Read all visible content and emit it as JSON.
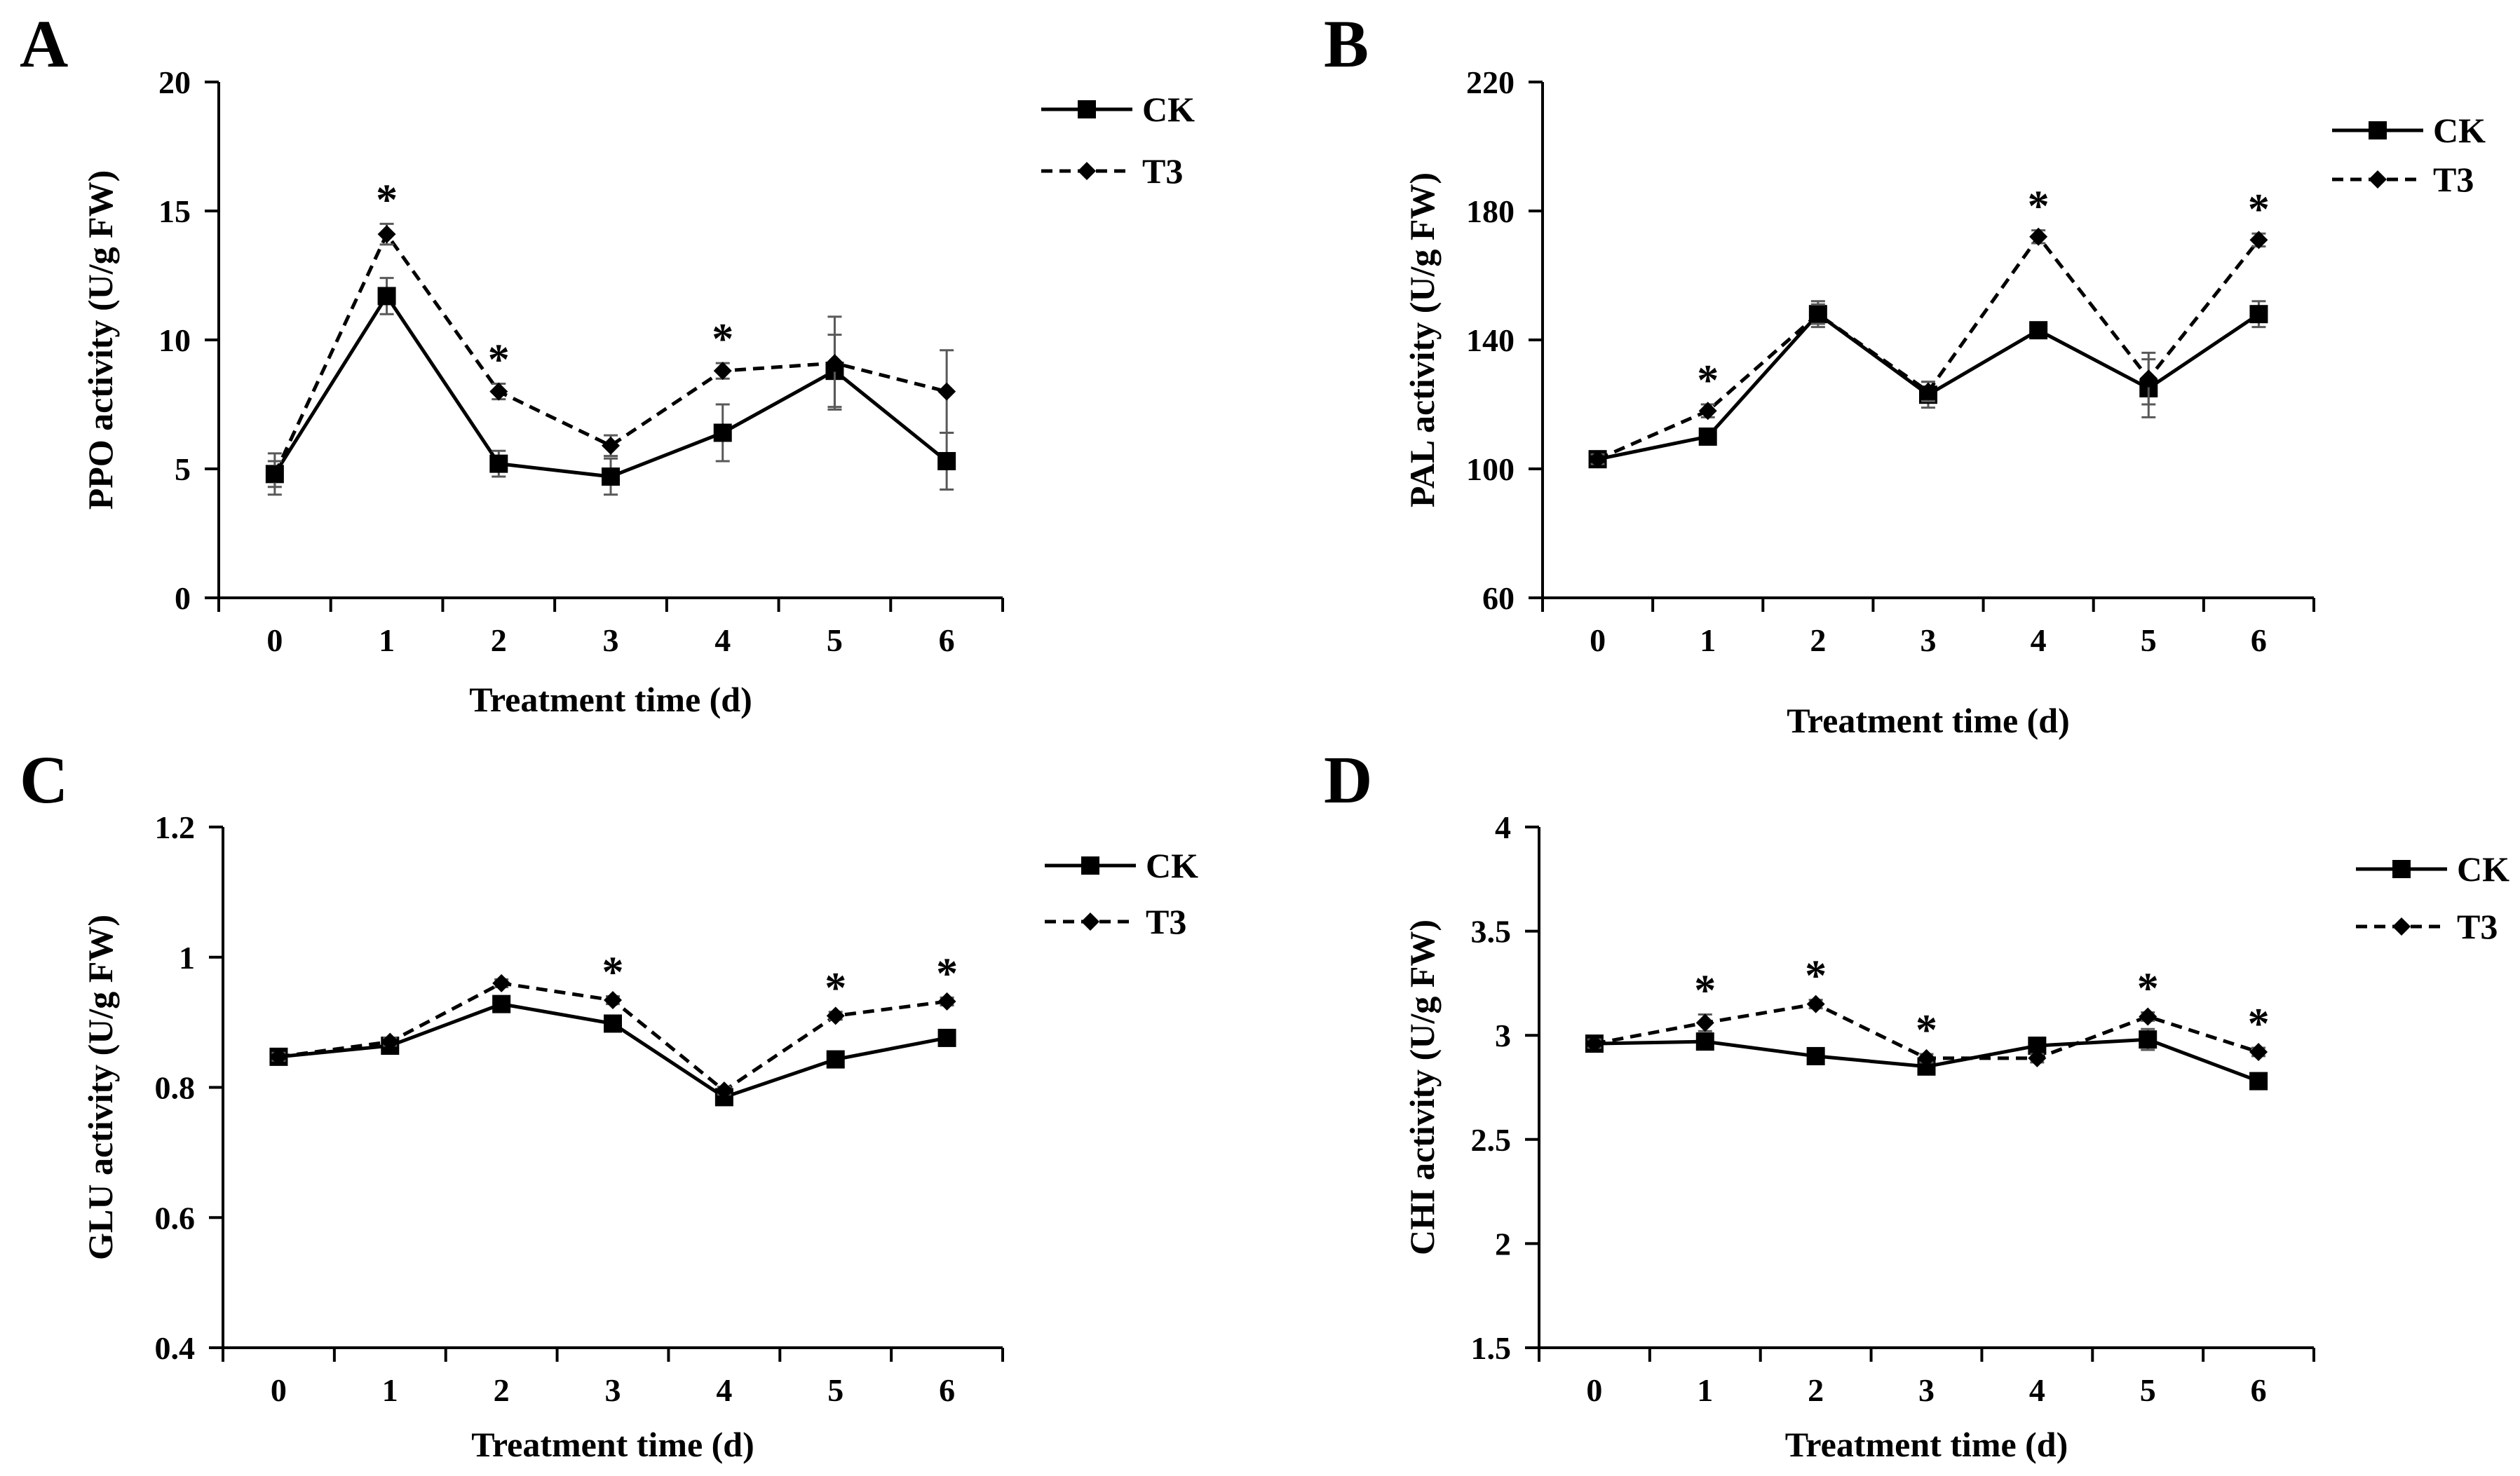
{
  "figure": {
    "colors": {
      "line": "#000000",
      "errorbar": "#595959",
      "background": "#ffffff"
    }
  },
  "chart_data": [
    {
      "id": "A",
      "type": "line",
      "panel_label": "A",
      "xlabel": "Treatment time (d)",
      "ylabel": "PPO activity (U/g FW)",
      "x": [
        0,
        1,
        2,
        3,
        4,
        5,
        6
      ],
      "ylim": [
        0,
        20
      ],
      "yticks": [
        "0",
        "5",
        "10",
        "15",
        "20"
      ],
      "ytick_values": [
        0,
        5,
        10,
        15,
        20
      ],
      "series": [
        {
          "name": "CK",
          "style": "solid",
          "marker": "square",
          "values": [
            4.8,
            11.7,
            5.2,
            4.7,
            6.4,
            8.8,
            5.3
          ],
          "errors": [
            0.8,
            0.7,
            0.5,
            0.7,
            1.1,
            1.4,
            1.1
          ]
        },
        {
          "name": "T3",
          "style": "dashed",
          "marker": "diamond",
          "values": [
            4.8,
            14.1,
            8.0,
            5.9,
            8.8,
            9.1,
            8.0
          ],
          "errors": [
            0.5,
            0.4,
            0.3,
            0.4,
            0.3,
            1.8,
            1.6
          ]
        }
      ],
      "significance": [
        {
          "x": 1,
          "label": "*"
        },
        {
          "x": 2,
          "label": "*"
        },
        {
          "x": 4,
          "label": "*"
        }
      ],
      "legend_position": "top-right"
    },
    {
      "id": "B",
      "type": "line",
      "panel_label": "B",
      "xlabel": "Treatment time (d)",
      "ylabel": "PAL activity (U/g FW)",
      "x": [
        0,
        1,
        2,
        3,
        4,
        5,
        6
      ],
      "ylim": [
        60,
        220
      ],
      "yticks": [
        "60",
        "100",
        "140",
        "180",
        "220"
      ],
      "ytick_values": [
        60,
        100,
        140,
        180,
        220
      ],
      "series": [
        {
          "name": "CK",
          "style": "solid",
          "marker": "square",
          "values": [
            103,
            110,
            148,
            123,
            143,
            125,
            148
          ],
          "errors": [
            1.5,
            2,
            4,
            4,
            2,
            9,
            4
          ]
        },
        {
          "name": "T3",
          "style": "dashed",
          "marker": "diamond",
          "values": [
            103,
            118,
            148,
            124,
            172,
            128,
            171
          ],
          "errors": [
            1.5,
            2,
            3,
            3,
            2,
            8,
            2
          ]
        }
      ],
      "significance": [
        {
          "x": 1,
          "label": "*"
        },
        {
          "x": 4,
          "label": "*"
        },
        {
          "x": 6,
          "label": "*"
        }
      ],
      "legend_position": "top-right"
    },
    {
      "id": "C",
      "type": "line",
      "panel_label": "C",
      "xlabel": "Treatment time (d)",
      "ylabel": "GLU activity (U/g FW)",
      "x": [
        0,
        1,
        2,
        3,
        4,
        5,
        6
      ],
      "ylim": [
        0.4,
        1.2
      ],
      "yticks": [
        "0.4",
        "0.6",
        "0.8",
        "1",
        "1.2"
      ],
      "ytick_values": [
        0.4,
        0.6,
        0.8,
        1.0,
        1.2
      ],
      "series": [
        {
          "name": "CK",
          "style": "solid",
          "marker": "square",
          "values": [
            0.847,
            0.864,
            0.928,
            0.898,
            0.785,
            0.843,
            0.876
          ],
          "errors": [
            0.008,
            0.008,
            0.008,
            0.008,
            0.008,
            0.008,
            0.008
          ]
        },
        {
          "name": "T3",
          "style": "dashed",
          "marker": "diamond",
          "values": [
            0.847,
            0.87,
            0.96,
            0.934,
            0.795,
            0.91,
            0.932
          ],
          "errors": [
            0.006,
            0.006,
            0.006,
            0.006,
            0.006,
            0.006,
            0.006
          ]
        }
      ],
      "significance": [
        {
          "x": 3,
          "label": "*"
        },
        {
          "x": 5,
          "label": "*"
        },
        {
          "x": 6,
          "label": "*"
        }
      ],
      "legend_position": "top-right"
    },
    {
      "id": "D",
      "type": "line",
      "panel_label": "D",
      "xlabel": "Treatment time (d)",
      "ylabel": "CHI activity (U/g FW)",
      "x": [
        0,
        1,
        2,
        3,
        4,
        5,
        6
      ],
      "ylim": [
        1.5,
        4
      ],
      "yticks": [
        "1.5",
        "2",
        "2.5",
        "3",
        "3.5",
        "4"
      ],
      "ytick_values": [
        1.5,
        2.0,
        2.5,
        3.0,
        3.5,
        4.0
      ],
      "series": [
        {
          "name": "CK",
          "style": "solid",
          "marker": "square",
          "values": [
            2.96,
            2.97,
            2.9,
            2.85,
            2.95,
            2.98,
            2.78
          ],
          "errors": [
            0.02,
            0.02,
            0.02,
            0.02,
            0.02,
            0.05,
            0.02
          ]
        },
        {
          "name": "T3",
          "style": "dashed",
          "marker": "diamond",
          "values": [
            2.96,
            3.06,
            3.15,
            2.89,
            2.89,
            3.09,
            2.92
          ],
          "errors": [
            0.02,
            0.04,
            0.02,
            0.02,
            0.02,
            0.02,
            0.02
          ]
        }
      ],
      "significance": [
        {
          "x": 1,
          "label": "*"
        },
        {
          "x": 2,
          "label": "*"
        },
        {
          "x": 3,
          "label": "*"
        },
        {
          "x": 5,
          "label": "*"
        },
        {
          "x": 6,
          "label": "*"
        }
      ],
      "legend_position": "top-right"
    }
  ]
}
